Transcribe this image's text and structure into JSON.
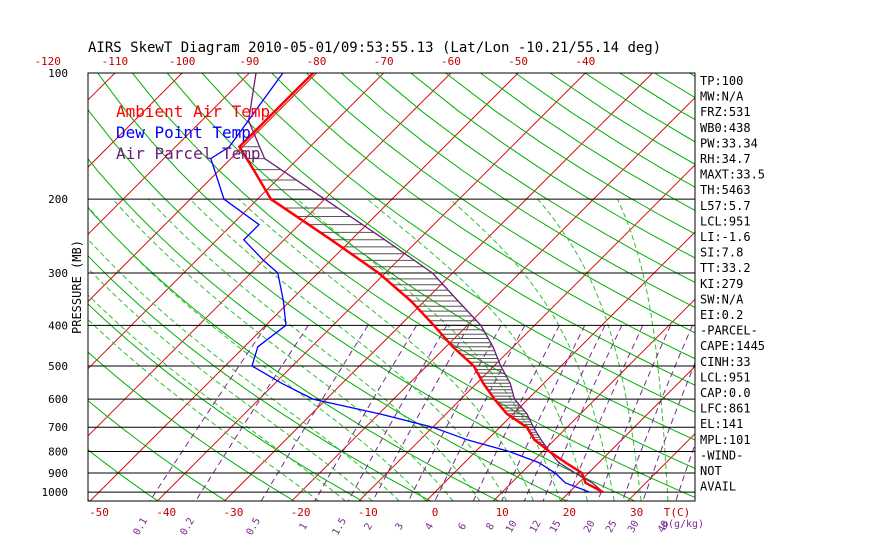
{
  "chart_data": {
    "type": "skewt",
    "title": "AIRS SkewT Diagram 2010-05-01/09:53:55.13 (Lat/Lon -10.21/55.14 deg)",
    "ylabel": "PRESSURE (MB)",
    "pressure_ticks": [
      100,
      200,
      300,
      400,
      500,
      600,
      700,
      800,
      900,
      1000
    ],
    "top_temp_ticks": [
      -120,
      -110,
      -100,
      -90,
      -80,
      -70,
      -60,
      -50,
      -40
    ],
    "bottom_temp_ticks": [
      -50,
      -40,
      -30,
      -20,
      -10,
      0,
      10,
      20,
      30
    ],
    "bottom_temp_unit": "T(C)",
    "mixing_ratio_labels": [
      "0.1",
      "0.2",
      "0.5",
      "1",
      "1.5",
      "2",
      "3",
      "4",
      "6",
      "8",
      "10",
      "12",
      "15",
      "20",
      "25",
      "30",
      "40"
    ],
    "mixing_ratio_unit": "g(g/kg)",
    "legend": [
      {
        "name": "Ambient Air Temp",
        "color": "#ff0000"
      },
      {
        "name": "Dew Point Temp",
        "color": "#0000ff"
      },
      {
        "name": "Air Parcel Temp",
        "color": "#6a1d7a"
      }
    ],
    "series": [
      {
        "name": "Ambient Air Temp",
        "color": "#ff0000",
        "points": [
          [
            100,
            -80.5
          ],
          [
            115,
            -80.5
          ],
          [
            130,
            -80.5
          ],
          [
            150,
            -80.5
          ],
          [
            170,
            -75
          ],
          [
            200,
            -68
          ],
          [
            250,
            -53
          ],
          [
            300,
            -41
          ],
          [
            350,
            -32
          ],
          [
            400,
            -25
          ],
          [
            450,
            -19
          ],
          [
            500,
            -13
          ],
          [
            550,
            -9
          ],
          [
            600,
            -5
          ],
          [
            650,
            -1
          ],
          [
            700,
            4
          ],
          [
            750,
            7
          ],
          [
            800,
            11
          ],
          [
            850,
            15
          ],
          [
            900,
            19
          ],
          [
            950,
            21
          ],
          [
            1000,
            25
          ]
        ]
      },
      {
        "name": "Dew Point Temp",
        "color": "#0000ff",
        "points": [
          [
            100,
            -85
          ],
          [
            150,
            -82
          ],
          [
            160,
            -83
          ],
          [
            200,
            -75
          ],
          [
            230,
            -66
          ],
          [
            250,
            -66
          ],
          [
            280,
            -60
          ],
          [
            300,
            -56
          ],
          [
            350,
            -51
          ],
          [
            400,
            -47
          ],
          [
            450,
            -48
          ],
          [
            500,
            -46
          ],
          [
            550,
            -39
          ],
          [
            600,
            -32
          ],
          [
            650,
            -20
          ],
          [
            700,
            -10
          ],
          [
            750,
            -3
          ],
          [
            800,
            5
          ],
          [
            850,
            11
          ],
          [
            900,
            15
          ],
          [
            950,
            18
          ],
          [
            1000,
            23
          ]
        ]
      },
      {
        "name": "Air Parcel Temp",
        "color": "#6a1d7a",
        "points": [
          [
            100,
            -89
          ],
          [
            130,
            -83
          ],
          [
            160,
            -75
          ],
          [
            200,
            -60
          ],
          [
            250,
            -45
          ],
          [
            300,
            -33
          ],
          [
            350,
            -25
          ],
          [
            400,
            -18
          ],
          [
            450,
            -13
          ],
          [
            500,
            -9
          ],
          [
            550,
            -5
          ],
          [
            600,
            -2
          ],
          [
            650,
            2
          ],
          [
            700,
            5
          ],
          [
            750,
            8
          ],
          [
            800,
            11
          ],
          [
            850,
            14
          ],
          [
            900,
            18
          ],
          [
            950,
            22
          ],
          [
            1000,
            25
          ]
        ]
      }
    ],
    "indices": [
      "TP:100",
      "MW:N/A",
      "FRZ:531",
      "WB0:438",
      "PW:33.34",
      "RH:34.7",
      "MAXT:33.5",
      "TH:5463",
      "L57:5.7",
      "LCL:951",
      "LI:-1.6",
      "SI:7.8",
      "TT:33.2",
      "KI:279",
      "SW:N/A",
      "EI:0.2",
      "-PARCEL-",
      "CAPE:1445",
      "CINH:33",
      "LCL:951",
      "CAP:0.0",
      "LFC:861",
      "EL:141",
      "MPL:101",
      "-WIND-",
      "NOT",
      "AVAIL"
    ],
    "colors": {
      "isotherm": "#d81010",
      "dry_adiabat": "#00b000",
      "moist_adiabat": "#30c030",
      "mixing_ratio": "#7a2a8a",
      "isobar": "#000000"
    }
  }
}
